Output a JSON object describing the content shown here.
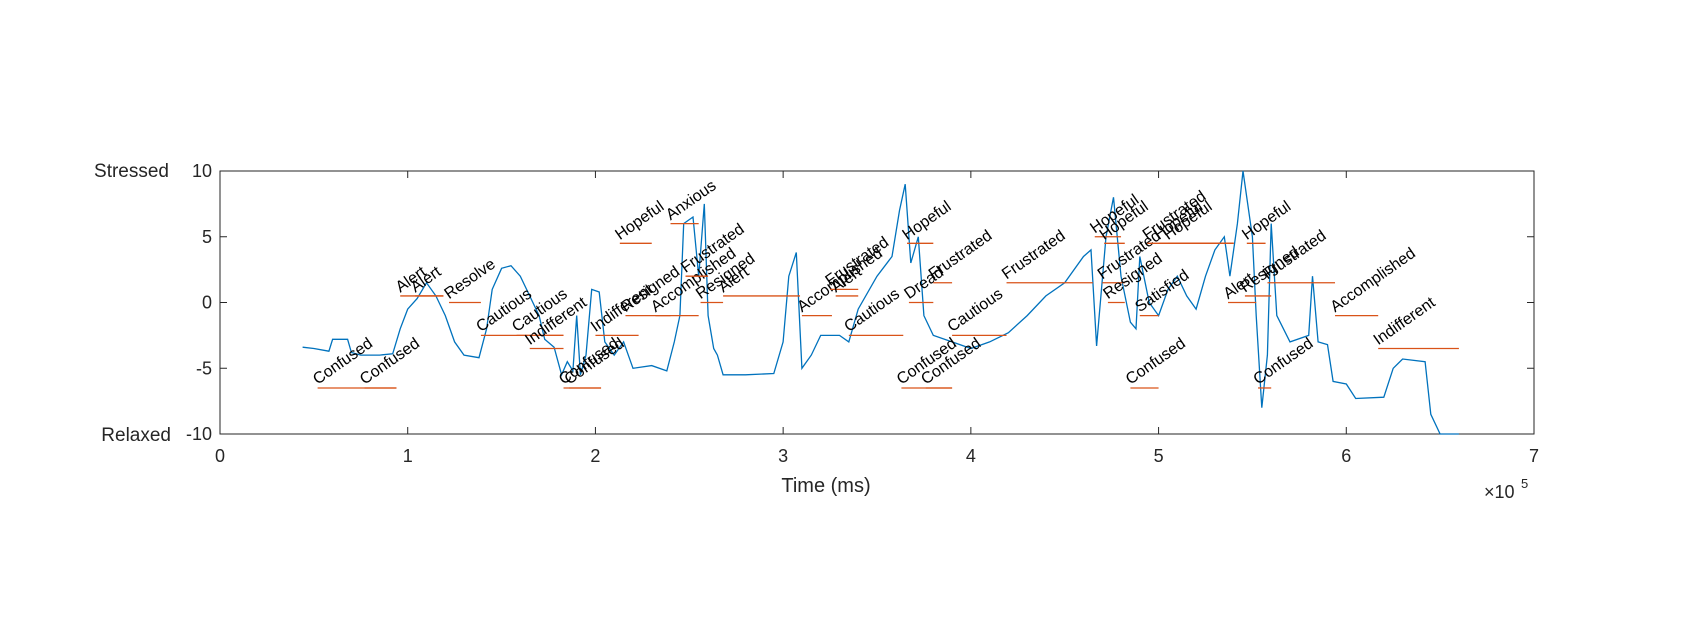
{
  "chart_data": {
    "type": "line",
    "xlabel": "Time (ms)",
    "x_multiplier": "×10",
    "x_multiplier_exponent": "5",
    "y_top_label": "Stressed",
    "y_bottom_label": "Relaxed",
    "xlim": [
      0,
      700000
    ],
    "xticks": [
      0,
      {
        "value": 100000,
        "label": "1"
      },
      {
        "value": 200000,
        "label": "2"
      },
      {
        "value": 300000,
        "label": "3"
      },
      {
        "value": 400000,
        "label": "4"
      },
      {
        "value": 500000,
        "label": "5"
      },
      {
        "value": 600000,
        "label": "6"
      },
      {
        "value": 700000,
        "label": "7"
      }
    ],
    "ylim": [
      -10,
      10
    ],
    "yticks": [
      -10,
      -5,
      0,
      5,
      10
    ],
    "series": [
      {
        "color": "#0072bd",
        "x": [
          44000,
          50000,
          58000,
          60000,
          68000,
          70000,
          75000,
          85000,
          92000,
          96000,
          100000,
          105000,
          110000,
          115000,
          120000,
          125000,
          130000,
          138000,
          142000,
          145000,
          150000,
          155000,
          160000,
          165000,
          170000,
          173000,
          178000,
          182000,
          185000,
          188000,
          190000,
          192000,
          195000,
          198000,
          202000,
          205000,
          210000,
          215000,
          220000,
          230000,
          238000,
          242000,
          245000,
          247000,
          252000,
          255000,
          258000,
          260000,
          263000,
          265000,
          268000,
          280000,
          295000,
          300000,
          303000,
          307000,
          310000,
          315000,
          320000,
          330000,
          335000,
          340000,
          350000,
          358000,
          362000,
          365000,
          368000,
          372000,
          375000,
          380000,
          390000,
          400000,
          410000,
          420000,
          430000,
          440000,
          450000,
          460000,
          464000,
          467000,
          472000,
          476000,
          480000,
          485000,
          488000,
          490000,
          495000,
          500000,
          505000,
          510000,
          515000,
          520000,
          525000,
          530000,
          535000,
          538000,
          542000,
          545000,
          550000,
          552000,
          555000,
          558000,
          560000,
          563000,
          570000,
          580000,
          582000,
          585000,
          590000,
          593000,
          600000,
          605000,
          620000,
          625000,
          630000,
          642000,
          645000,
          650000,
          660000
        ],
        "values": [
          -3.4,
          -3.5,
          -3.7,
          -2.8,
          -2.8,
          -3.8,
          -4,
          -4,
          -3.9,
          -2,
          -0.5,
          0.3,
          1.5,
          0.5,
          -1,
          -3,
          -4,
          -4.2,
          -2,
          1,
          2.6,
          2.8,
          2,
          0.5,
          -1,
          -2.8,
          -3.4,
          -5.5,
          -4.5,
          -5.2,
          -1,
          -5.5,
          -4,
          1,
          0.8,
          -3,
          -4,
          -3,
          -5,
          -4.8,
          -5.2,
          -3,
          -1,
          6,
          6.5,
          2,
          7.5,
          -1,
          -3.5,
          -4,
          -5.5,
          -5.5,
          -5.4,
          -3,
          2,
          3.8,
          -5,
          -4,
          -2.5,
          -2.5,
          -3,
          -0.5,
          2,
          3.5,
          7,
          9,
          3,
          5,
          -1,
          -2.5,
          -3,
          -3.5,
          -3,
          -2.3,
          -1,
          0.5,
          1.5,
          3.5,
          4,
          -3.3,
          5,
          8,
          2,
          -1.5,
          -2,
          3.5,
          0,
          -1,
          1,
          2,
          0.5,
          -0.5,
          2,
          4,
          5,
          2,
          6,
          10,
          5,
          -1,
          -8,
          -4,
          6,
          -1,
          -3,
          -2.5,
          2,
          -3,
          -3.2,
          -6,
          -6.2,
          -7.3,
          -7.2,
          -5,
          -4.3,
          -4.5,
          -8.5,
          -10,
          -10
        ]
      }
    ],
    "segment_color": "#d95319",
    "segments": [
      {
        "label": "Confused",
        "start": 52000,
        "end": 94000,
        "y": -6.5
      },
      {
        "label": "Confused",
        "start": 77000,
        "end": 94000,
        "y": -6.5
      },
      {
        "label": "Alert",
        "start": 96000,
        "end": 119000,
        "y": 0.5
      },
      {
        "label": "Alert",
        "start": 104000,
        "end": 119000,
        "y": 0.5
      },
      {
        "label": "Resolve",
        "start": 122000,
        "end": 139000,
        "y": 0
      },
      {
        "label": "Cautious",
        "start": 139000,
        "end": 183000,
        "y": -2.5
      },
      {
        "label": "Cautious",
        "start": 158000,
        "end": 183000,
        "y": -2.5
      },
      {
        "label": "Indifferent",
        "start": 165000,
        "end": 183000,
        "y": -3.5
      },
      {
        "label": "Confused",
        "start": 183000,
        "end": 203000,
        "y": -6.5
      },
      {
        "label": "Confused",
        "start": 186000,
        "end": 203000,
        "y": -6.5
      },
      {
        "label": "Indifferent",
        "start": 200000,
        "end": 223000,
        "y": -2.5
      },
      {
        "label": "Hopeful",
        "start": 213000,
        "end": 230000,
        "y": 4.5
      },
      {
        "label": "Resigned",
        "start": 216000,
        "end": 240000,
        "y": -1
      },
      {
        "label": "Accomplished",
        "start": 232000,
        "end": 255000,
        "y": -1
      },
      {
        "label": "Anxious",
        "start": 240000,
        "end": 255000,
        "y": 6
      },
      {
        "label": "Frustrated",
        "start": 248000,
        "end": 260000,
        "y": 2
      },
      {
        "label": "Resigned",
        "start": 256000,
        "end": 268000,
        "y": 0
      },
      {
        "label": "Alert",
        "start": 268000,
        "end": 309000,
        "y": 0.5
      },
      {
        "label": "Accomplished",
        "start": 310000,
        "end": 326000,
        "y": -1
      },
      {
        "label": "Frustrated",
        "start": 325000,
        "end": 340000,
        "y": 1
      },
      {
        "label": "Alert",
        "start": 328000,
        "end": 340000,
        "y": 0.5
      },
      {
        "label": "Cautious",
        "start": 335000,
        "end": 364000,
        "y": -2.5
      },
      {
        "label": "Confused",
        "start": 363000,
        "end": 390000,
        "y": -6.5
      },
      {
        "label": "Hopeful",
        "start": 366000,
        "end": 380000,
        "y": 4.5
      },
      {
        "label": "Dread",
        "start": 367000,
        "end": 380000,
        "y": 0
      },
      {
        "label": "Confused",
        "start": 376000,
        "end": 390000,
        "y": -6.5
      },
      {
        "label": "Frustrated",
        "start": 380000,
        "end": 390000,
        "y": 1.5
      },
      {
        "label": "Cautious",
        "start": 390000,
        "end": 419000,
        "y": -2.5
      },
      {
        "label": "Frustrated",
        "start": 419000,
        "end": 465000,
        "y": 1.5
      },
      {
        "label": "Hopeful",
        "start": 466000,
        "end": 480000,
        "y": 5
      },
      {
        "label": "Frustrated",
        "start": 470000,
        "end": 482000,
        "y": 1.5
      },
      {
        "label": "Hopeful",
        "start": 471000,
        "end": 482000,
        "y": 4.5
      },
      {
        "label": "Resigned",
        "start": 473000,
        "end": 482000,
        "y": 0
      },
      {
        "label": "Confused",
        "start": 485000,
        "end": 500000,
        "y": -6.5
      },
      {
        "label": "Satisfied",
        "start": 490000,
        "end": 500000,
        "y": -1
      },
      {
        "label": "Frustrated",
        "start": 494000,
        "end": 540000,
        "y": 4.5
      },
      {
        "label": "Hopeful",
        "start": 500000,
        "end": 540000,
        "y": 4.5
      },
      {
        "label": "Hopeful",
        "start": 505000,
        "end": 540000,
        "y": 4.5
      },
      {
        "label": "Alert",
        "start": 537000,
        "end": 552000,
        "y": 0
      },
      {
        "label": "Hopeful",
        "start": 547000,
        "end": 557000,
        "y": 4.5
      },
      {
        "label": "Resigned",
        "start": 546000,
        "end": 560000,
        "y": 0.5
      },
      {
        "label": "Confused",
        "start": 553000,
        "end": 560000,
        "y": -6.5
      },
      {
        "label": "Frustrated",
        "start": 558000,
        "end": 594000,
        "y": 1.5
      },
      {
        "label": "Accomplished",
        "start": 594000,
        "end": 617000,
        "y": -1
      },
      {
        "label": "Indifferent",
        "start": 617000,
        "end": 660000,
        "y": -3.5
      }
    ]
  }
}
